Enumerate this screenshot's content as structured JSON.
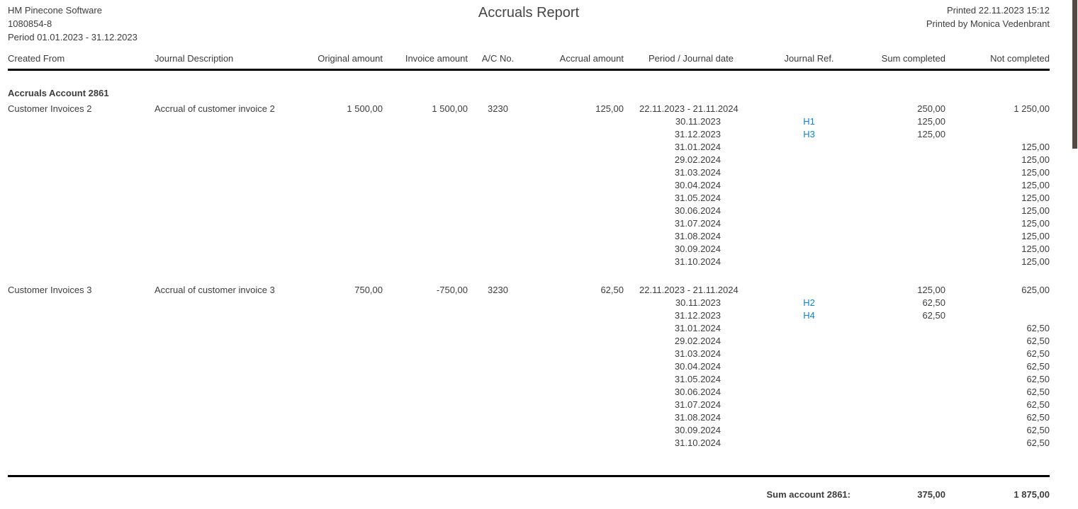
{
  "header": {
    "company": "HM Pinecone Software",
    "org_number": "1080854-8",
    "period": "Period 01.01.2023 - 31.12.2023",
    "title": "Accruals Report",
    "printed": "Printed 22.11.2023 15:12",
    "printed_by": "Printed by Monica Vedenbrant"
  },
  "table": {
    "columns": [
      "Created From",
      "Journal Description",
      "Original amount",
      "Invoice amount",
      "A/C No.",
      "Accrual amount",
      "Period / Journal date",
      "Journal Ref.",
      "Sum completed",
      "Not completed"
    ],
    "section_title": "Accruals Account 2861",
    "groups": [
      {
        "created_from": "Customer Invoices 2",
        "journal_description": "Accrual of customer invoice 2",
        "original_amount": "1 500,00",
        "invoice_amount": "1 500,00",
        "ac_no": "3230",
        "accrual_amount": "125,00",
        "period": "22.11.2023 - 21.11.2024",
        "sum_completed": "250,00",
        "not_completed": "1 250,00",
        "details": [
          {
            "date": "30.11.2023",
            "journal_ref": "H1",
            "sum_completed": "125,00",
            "not_completed": ""
          },
          {
            "date": "31.12.2023",
            "journal_ref": "H3",
            "sum_completed": "125,00",
            "not_completed": ""
          },
          {
            "date": "31.01.2024",
            "journal_ref": "",
            "sum_completed": "",
            "not_completed": "125,00"
          },
          {
            "date": "29.02.2024",
            "journal_ref": "",
            "sum_completed": "",
            "not_completed": "125,00"
          },
          {
            "date": "31.03.2024",
            "journal_ref": "",
            "sum_completed": "",
            "not_completed": "125,00"
          },
          {
            "date": "30.04.2024",
            "journal_ref": "",
            "sum_completed": "",
            "not_completed": "125,00"
          },
          {
            "date": "31.05.2024",
            "journal_ref": "",
            "sum_completed": "",
            "not_completed": "125,00"
          },
          {
            "date": "30.06.2024",
            "journal_ref": "",
            "sum_completed": "",
            "not_completed": "125,00"
          },
          {
            "date": "31.07.2024",
            "journal_ref": "",
            "sum_completed": "",
            "not_completed": "125,00"
          },
          {
            "date": "31.08.2024",
            "journal_ref": "",
            "sum_completed": "",
            "not_completed": "125,00"
          },
          {
            "date": "30.09.2024",
            "journal_ref": "",
            "sum_completed": "",
            "not_completed": "125,00"
          },
          {
            "date": "31.10.2024",
            "journal_ref": "",
            "sum_completed": "",
            "not_completed": "125,00"
          }
        ]
      },
      {
        "created_from": "Customer Invoices 3",
        "journal_description": "Accrual of customer invoice 3",
        "original_amount": "750,00",
        "invoice_amount": "-750,00",
        "ac_no": "3230",
        "accrual_amount": "62,50",
        "period": "22.11.2023 - 21.11.2024",
        "sum_completed": "125,00",
        "not_completed": "625,00",
        "details": [
          {
            "date": "30.11.2023",
            "journal_ref": "H2",
            "sum_completed": "62,50",
            "not_completed": ""
          },
          {
            "date": "31.12.2023",
            "journal_ref": "H4",
            "sum_completed": "62,50",
            "not_completed": ""
          },
          {
            "date": "31.01.2024",
            "journal_ref": "",
            "sum_completed": "",
            "not_completed": "62,50"
          },
          {
            "date": "29.02.2024",
            "journal_ref": "",
            "sum_completed": "",
            "not_completed": "62,50"
          },
          {
            "date": "31.03.2024",
            "journal_ref": "",
            "sum_completed": "",
            "not_completed": "62,50"
          },
          {
            "date": "30.04.2024",
            "journal_ref": "",
            "sum_completed": "",
            "not_completed": "62,50"
          },
          {
            "date": "31.05.2024",
            "journal_ref": "",
            "sum_completed": "",
            "not_completed": "62,50"
          },
          {
            "date": "30.06.2024",
            "journal_ref": "",
            "sum_completed": "",
            "not_completed": "62,50"
          },
          {
            "date": "31.07.2024",
            "journal_ref": "",
            "sum_completed": "",
            "not_completed": "62,50"
          },
          {
            "date": "31.08.2024",
            "journal_ref": "",
            "sum_completed": "",
            "not_completed": "62,50"
          },
          {
            "date": "30.09.2024",
            "journal_ref": "",
            "sum_completed": "",
            "not_completed": "62,50"
          },
          {
            "date": "31.10.2024",
            "journal_ref": "",
            "sum_completed": "",
            "not_completed": "62,50"
          }
        ]
      }
    ],
    "summary": {
      "label": "Sum account 2861:",
      "sum_completed": "375,00",
      "not_completed": "1 875,00"
    }
  },
  "colors": {
    "link": "#0a84d7",
    "text": "#3d3d3d",
    "rule": "#000000",
    "scrollbar_thumb": "#554a41"
  }
}
